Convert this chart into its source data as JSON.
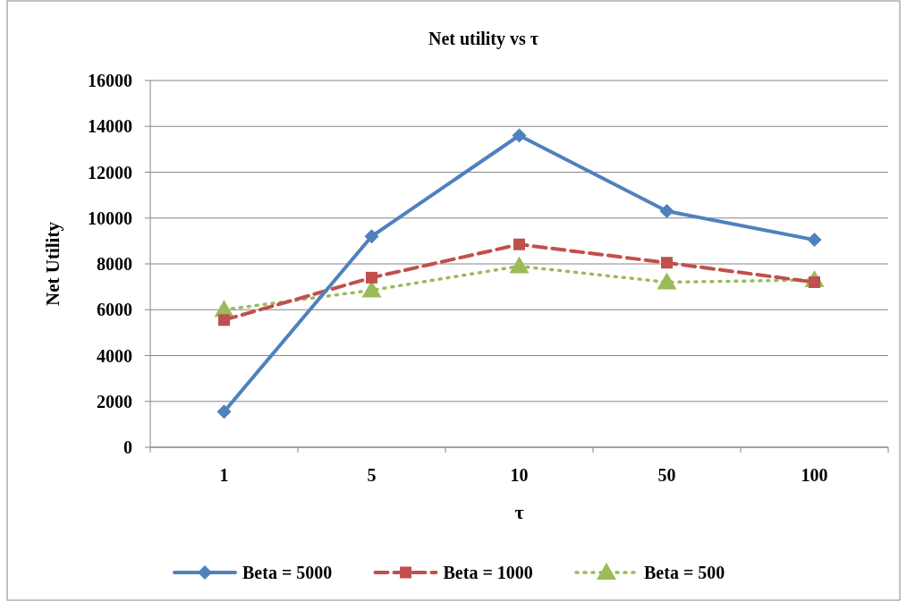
{
  "chart_data": {
    "type": "line",
    "title": "Net utility vs τ",
    "xlabel": "τ",
    "ylabel": "Net Utility",
    "categories": [
      "1",
      "5",
      "10",
      "50",
      "100"
    ],
    "ylim": [
      0,
      16000
    ],
    "yticks": [
      0,
      2000,
      4000,
      6000,
      8000,
      10000,
      12000,
      14000,
      16000
    ],
    "grid": "y",
    "legend": "bottom",
    "series": [
      {
        "name": "Beta = 5000",
        "color": "#4f81bd",
        "marker": "diamond",
        "line_style": "solid",
        "values": [
          1550,
          9200,
          13600,
          10300,
          9050
        ]
      },
      {
        "name": "Beta = 1000",
        "color": "#c0504d",
        "marker": "square",
        "line_style": "dashed",
        "values": [
          5550,
          7400,
          8850,
          8050,
          7200
        ]
      },
      {
        "name": "Beta = 500",
        "color": "#9bbb59",
        "marker": "triangle",
        "line_style": "dotted",
        "values": [
          6000,
          6850,
          7900,
          7200,
          7300
        ]
      }
    ]
  }
}
